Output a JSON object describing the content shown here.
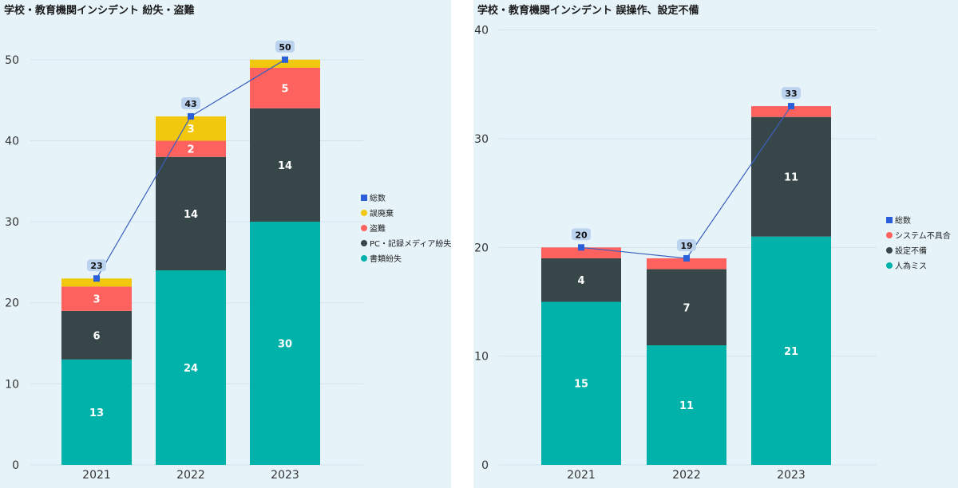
{
  "colors": {
    "teal": "#00b2a9",
    "dark": "#374649",
    "red": "#fd625e",
    "yellow": "#f2c80f",
    "line": "#2b5fd9",
    "line_stroke": "#3a5fbf",
    "callout": "#bcd3f0"
  },
  "chart_data": [
    {
      "type": "bar",
      "stacked": true,
      "title": "学校・教育機関インシデント 紛失・盗難",
      "categories": [
        "2021",
        "2022",
        "2023"
      ],
      "ylim": [
        0,
        55
      ],
      "yticks": [
        0,
        10,
        20,
        30,
        40,
        50
      ],
      "grid": true,
      "legend_position": "right",
      "series": [
        {
          "name": "書類紛失",
          "values": [
            13,
            24,
            30
          ],
          "color": "#00b2a9"
        },
        {
          "name": "PC・記録メディア紛失",
          "values": [
            6,
            14,
            14
          ],
          "color": "#374649"
        },
        {
          "name": "盗難",
          "values": [
            3,
            2,
            5
          ],
          "color": "#fd625e"
        },
        {
          "name": "誤廃棄",
          "values": [
            1,
            3,
            1
          ],
          "color": "#f2c80f"
        }
      ],
      "bar_labels": [
        [
          "13",
          "6",
          "3",
          ""
        ],
        [
          "24",
          "14",
          "2",
          "3"
        ],
        [
          "30",
          "14",
          "5",
          ""
        ]
      ],
      "total_line": {
        "name": "総数",
        "values": [
          23,
          43,
          50
        ]
      },
      "legend": [
        "総数",
        "誤廃棄",
        "盗難",
        "PC・記録メディア紛失",
        "書類紛失"
      ]
    },
    {
      "type": "bar",
      "stacked": true,
      "title": "学校・教育機関インシデント 誤操作、設定不備",
      "categories": [
        "2021",
        "2022",
        "2023"
      ],
      "ylim": [
        0,
        41
      ],
      "yticks": [
        0,
        10,
        20,
        30,
        40
      ],
      "grid": true,
      "legend_position": "right",
      "series": [
        {
          "name": "人為ミス",
          "values": [
            15,
            11,
            21
          ],
          "color": "#00b2a9"
        },
        {
          "name": "設定不備",
          "values": [
            4,
            7,
            11
          ],
          "color": "#374649"
        },
        {
          "name": "システム不具合",
          "values": [
            1,
            1,
            1
          ],
          "color": "#fd625e"
        }
      ],
      "bar_labels": [
        [
          "15",
          "4",
          ""
        ],
        [
          "11",
          "7",
          ""
        ],
        [
          "21",
          "11",
          ""
        ]
      ],
      "total_line": {
        "name": "総数",
        "values": [
          20,
          19,
          33
        ]
      },
      "legend": [
        "総数",
        "システム不具合",
        "設定不備",
        "人為ミス"
      ]
    }
  ]
}
